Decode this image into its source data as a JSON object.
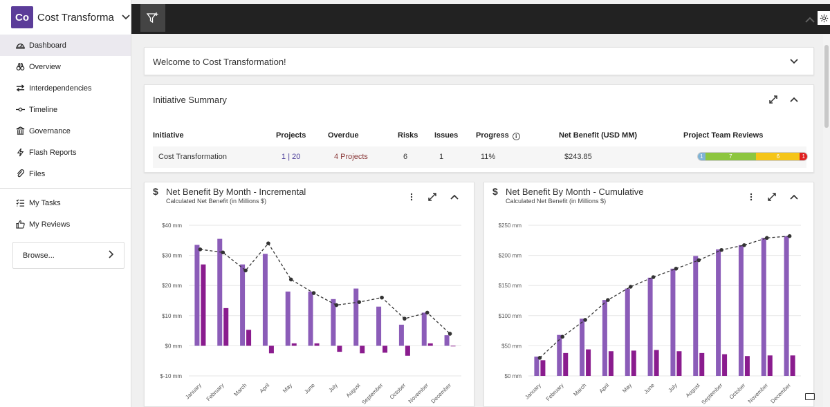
{
  "app": {
    "logo": "Co",
    "title": "Cost Transforma..."
  },
  "nav": [
    {
      "label": "Dashboard",
      "icon": "dashboard-icon",
      "active": true
    },
    {
      "label": "Overview",
      "icon": "binoculars-icon"
    },
    {
      "label": "Interdependencies",
      "icon": "swap-icon"
    },
    {
      "label": "Timeline",
      "icon": "timeline-icon"
    },
    {
      "label": "Governance",
      "icon": "governance-icon"
    },
    {
      "label": "Flash Reports",
      "icon": "flash-icon"
    },
    {
      "label": "Files",
      "icon": "paperclip-icon"
    }
  ],
  "nav2": [
    {
      "label": "My Tasks",
      "icon": "tasks-icon"
    },
    {
      "label": "My Reviews",
      "icon": "thumbs-up-icon"
    }
  ],
  "browse": {
    "label": "Browse..."
  },
  "welcome": {
    "title": "Welcome to Cost Transformation!"
  },
  "summary": {
    "title": "Initiative Summary",
    "headers": {
      "initiative": "Initiative",
      "projects": "Projects",
      "overdue": "Overdue",
      "risks": "Risks",
      "issues": "Issues",
      "progress": "Progress",
      "net_benefit": "Net Benefit (USD MM)",
      "reviews": "Project Team Reviews"
    },
    "row": {
      "initiative": "Cost Transformation",
      "projects_a": "1",
      "projects_sep": "|",
      "projects_b": "20",
      "overdue": "4 Projects",
      "risks": "6",
      "issues": "1",
      "progress": "11%",
      "net_benefit": "$243.85"
    },
    "reviews": [
      {
        "label": "1",
        "value": 1,
        "color": "#7fb3d5"
      },
      {
        "label": "7",
        "value": 7,
        "color": "#8dc63f"
      },
      {
        "label": "6",
        "value": 6,
        "color": "#f5c518"
      },
      {
        "label": "1",
        "value": 1,
        "color": "#e02020"
      }
    ]
  },
  "charts": [
    {
      "title": "Net Benefit By Month - Incremental",
      "subtitle": "Calculated Net Benefit (in Millions $)",
      "chart_data": {
        "type": "bar",
        "categories": [
          "January",
          "February",
          "March",
          "April",
          "May",
          "June",
          "July",
          "August",
          "September",
          "October",
          "November",
          "December"
        ],
        "yticks": [
          "$40 mm",
          "$30 mm",
          "$20 mm",
          "$10 mm",
          "$0 mm",
          "$-10 mm"
        ],
        "ylim": [
          -10,
          40
        ],
        "series": [
          {
            "values": [
              33.5,
              35.5,
              27,
              30.5,
              18,
              18,
              15.5,
              19,
              13,
              7,
              11,
              3.5
            ],
            "color": "#8b5cb8"
          },
          {
            "values": [
              27,
              12.5,
              5.3,
              -2.5,
              0.8,
              0.8,
              -2,
              -2.5,
              -2.3,
              -3.3,
              0.8,
              -0.2
            ],
            "color": "#8a1c8e"
          },
          {
            "type": "line",
            "values": [
              32,
              31,
              25,
              34,
              22,
              17.5,
              13.5,
              14.5,
              16,
              9,
              11,
              4
            ],
            "color": "#333"
          }
        ]
      }
    },
    {
      "title": "Net Benefit By Month - Cumulative",
      "subtitle": "Calculated Net Benefit (in Millions $)",
      "chart_data": {
        "type": "bar",
        "categories": [
          "January",
          "February",
          "March",
          "April",
          "May",
          "June",
          "July",
          "August",
          "September",
          "October",
          "November",
          "December"
        ],
        "yticks": [
          "$250 mm",
          "$200 mm",
          "$150 mm",
          "$100 mm",
          "$50 mm",
          "$0 mm"
        ],
        "ylim": [
          0,
          250
        ],
        "series": [
          {
            "values": [
              32,
              68,
              95,
              126,
              145,
              163,
              178,
              199,
              210,
              217,
              229,
              232
            ],
            "color": "#8b5cb8"
          },
          {
            "values": [
              26,
              38,
              44,
              41,
              42,
              43,
              41,
              38,
              36,
              33,
              34,
              34
            ],
            "color": "#8a1c8e"
          },
          {
            "type": "line",
            "values": [
              30,
              65,
              93,
              126,
              148,
              164,
              178,
              192,
              209,
              217,
              229,
              232
            ],
            "color": "#333"
          }
        ]
      }
    }
  ]
}
